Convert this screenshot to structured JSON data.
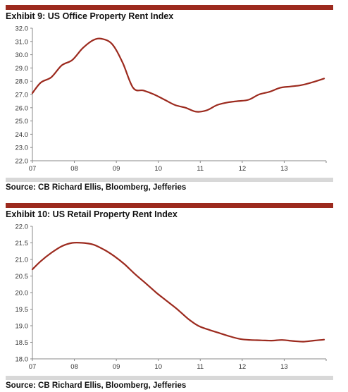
{
  "chart_data": [
    {
      "type": "line",
      "title": "Exhibit 9: US Office Property Rent Index",
      "source": "Source: CB Richard Ellis, Bloomberg, Jefferies",
      "x_ticks": [
        "07",
        "08",
        "09",
        "10",
        "11",
        "12",
        "13"
      ],
      "xlim": [
        2007,
        2014
      ],
      "ylim": [
        22.0,
        32.0
      ],
      "y_ticks": [
        "32.0",
        "31.0",
        "30.0",
        "29.0",
        "28.0",
        "27.0",
        "26.0",
        "25.0",
        "24.0",
        "23.0",
        "22.0"
      ],
      "grid": false,
      "color": "#9c2a1e",
      "series": [
        {
          "x": [
            2007.0,
            2007.2,
            2007.45,
            2007.7,
            2007.95,
            2008.2,
            2008.45,
            2008.65,
            2008.9,
            2009.15,
            2009.4,
            2009.65,
            2009.9,
            2010.15,
            2010.4,
            2010.65,
            2010.9,
            2011.15,
            2011.4,
            2011.65,
            2011.9,
            2012.15,
            2012.4,
            2012.65,
            2012.9,
            2013.15,
            2013.4,
            2013.65,
            2013.95
          ],
          "y": [
            27.1,
            27.9,
            28.3,
            29.2,
            29.6,
            30.5,
            31.1,
            31.2,
            30.8,
            29.4,
            27.5,
            27.3,
            27.0,
            26.6,
            26.2,
            26.0,
            25.7,
            25.8,
            26.2,
            26.4,
            26.5,
            26.6,
            27.0,
            27.2,
            27.5,
            27.6,
            27.7,
            27.9,
            28.2
          ]
        }
      ]
    },
    {
      "type": "line",
      "title": "Exhibit 10: US Retail Property Rent Index",
      "source": "Source: CB Richard Ellis, Bloomberg, Jefferies",
      "x_ticks": [
        "07",
        "08",
        "09",
        "10",
        "11",
        "12",
        "13"
      ],
      "xlim": [
        2007,
        2014
      ],
      "ylim": [
        18.0,
        22.0
      ],
      "y_ticks": [
        "22.0",
        "21.5",
        "21.0",
        "20.5",
        "20.0",
        "19.5",
        "19.0",
        "18.5",
        "18.0"
      ],
      "grid": false,
      "color": "#9c2a1e",
      "series": [
        {
          "x": [
            2007.0,
            2007.2,
            2007.45,
            2007.7,
            2007.95,
            2008.2,
            2008.45,
            2008.7,
            2008.95,
            2009.2,
            2009.45,
            2009.7,
            2009.95,
            2010.2,
            2010.45,
            2010.7,
            2010.95,
            2011.2,
            2011.45,
            2011.7,
            2011.95,
            2012.2,
            2012.45,
            2012.7,
            2012.95,
            2013.2,
            2013.45,
            2013.7,
            2013.95
          ],
          "y": [
            20.7,
            20.95,
            21.2,
            21.4,
            21.5,
            21.5,
            21.45,
            21.3,
            21.1,
            20.85,
            20.55,
            20.28,
            20.0,
            19.75,
            19.5,
            19.22,
            19.0,
            18.88,
            18.78,
            18.68,
            18.6,
            18.57,
            18.56,
            18.55,
            18.57,
            18.54,
            18.52,
            18.55,
            18.58
          ]
        }
      ]
    }
  ]
}
